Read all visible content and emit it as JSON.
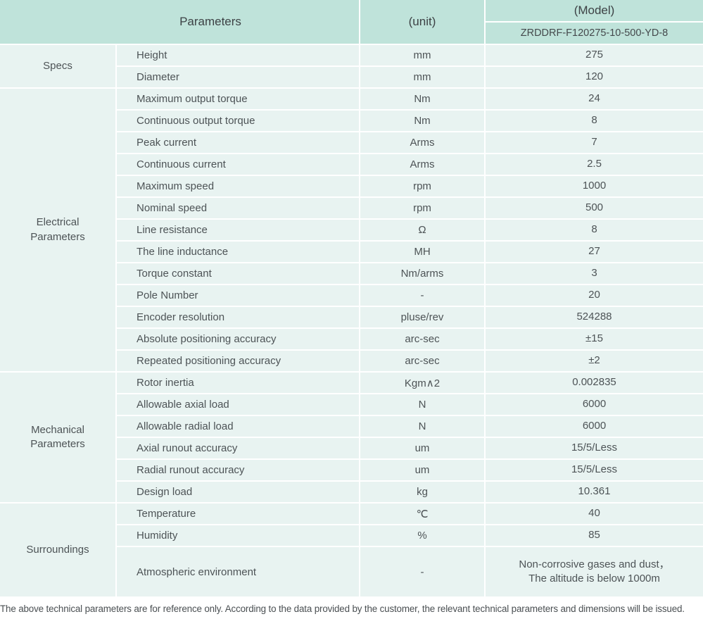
{
  "colors": {
    "header_bg": "#bfe3da",
    "cell_bg": "#e8f3f1",
    "gridline": "#ffffff",
    "text": "#4d5356"
  },
  "table": {
    "header": {
      "parameters_label": "Parameters",
      "unit_label": "(unit)",
      "model_label": "(Model)",
      "model_value": "ZRDDRF-F120275-10-500-YD-8"
    },
    "sections": [
      {
        "label": "Specs",
        "rows": [
          {
            "param": "Height",
            "unit": "mm",
            "value": "275"
          },
          {
            "param": "Diameter",
            "unit": "mm",
            "value": "120"
          }
        ]
      },
      {
        "label": "Electrical Parameters",
        "rows": [
          {
            "param": "Maximum output torque",
            "unit": "Nm",
            "value": "24"
          },
          {
            "param": "Continuous output torque",
            "unit": "Nm",
            "value": "8"
          },
          {
            "param": "Peak current",
            "unit": "Arms",
            "value": "7"
          },
          {
            "param": "Continuous current",
            "unit": "Arms",
            "value": "2.5"
          },
          {
            "param": "Maximum speed",
            "unit": "rpm",
            "value": "1000"
          },
          {
            "param": "Nominal speed",
            "unit": "rpm",
            "value": "500"
          },
          {
            "param": "Line resistance",
            "unit": "Ω",
            "value": "8"
          },
          {
            "param": "The line inductance",
            "unit": "MH",
            "value": "27"
          },
          {
            "param": "Torque constant",
            "unit": "Nm/arms",
            "value": "3"
          },
          {
            "param": "Pole Number",
            "unit": "-",
            "value": "20"
          },
          {
            "param": "Encoder resolution",
            "unit": "pluse/rev",
            "value": "524288"
          },
          {
            "param": "Absolute positioning accuracy",
            "unit": "arc-sec",
            "value": "±15"
          },
          {
            "param": "Repeated positioning accuracy",
            "unit": "arc-sec",
            "value": "±2"
          }
        ]
      },
      {
        "label": "Mechanical Parameters",
        "rows": [
          {
            "param": "Rotor inertia",
            "unit": "Kgm∧2",
            "value": "0.002835"
          },
          {
            "param": "Allowable axial load",
            "unit": "N",
            "value": "6000"
          },
          {
            "param": "Allowable radial load",
            "unit": "N",
            "value": "6000"
          },
          {
            "param": "Axial runout accuracy",
            "unit": "um",
            "value": "15/5/Less"
          },
          {
            "param": "Radial runout accuracy",
            "unit": "um",
            "value": "15/5/Less"
          },
          {
            "param": "Design load",
            "unit": "kg",
            "value": "10.361"
          }
        ]
      },
      {
        "label": "Surroundings",
        "rows": [
          {
            "param": "Temperature",
            "unit": "℃",
            "value": "40"
          },
          {
            "param": "Humidity",
            "unit": "%",
            "value": "85"
          },
          {
            "param": "Atmospheric environment",
            "unit": "-",
            "value": "Non-corrosive gases and dust，\nThe altitude is below 1000m"
          }
        ]
      }
    ],
    "footnote": "The above technical parameters are for reference only. According to the data provided by the customer, the relevant technical parameters and dimensions will be issued."
  }
}
